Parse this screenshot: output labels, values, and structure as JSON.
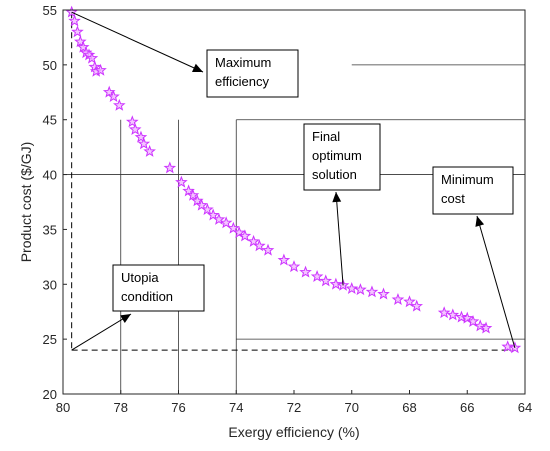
{
  "chart_data": {
    "type": "scatter",
    "xlabel": "Exergy efficiency (%)",
    "ylabel": "Product cost ($/GJ)",
    "xlim": [
      64,
      80
    ],
    "ylim": [
      20,
      55
    ],
    "x_reversed": true,
    "xticks": [
      80,
      78,
      76,
      74,
      72,
      70,
      68,
      66,
      64
    ],
    "yticks": [
      20,
      25,
      30,
      35,
      40,
      45,
      50,
      55
    ],
    "marker": "star",
    "marker_color": "#cc33ff",
    "x": [
      79.7,
      79.6,
      79.5,
      79.4,
      79.3,
      79.2,
      79.1,
      79.0,
      78.9,
      78.85,
      78.7,
      78.4,
      78.25,
      78.05,
      77.6,
      77.5,
      77.3,
      77.2,
      77.0,
      76.3,
      75.9,
      75.65,
      75.5,
      75.35,
      75.2,
      75.0,
      74.8,
      74.6,
      74.35,
      74.1,
      73.9,
      73.7,
      73.4,
      73.2,
      72.9,
      72.35,
      72.0,
      71.6,
      71.2,
      70.9,
      70.55,
      70.3,
      70.0,
      69.7,
      69.3,
      68.9,
      68.4,
      68.0,
      67.75,
      66.8,
      66.5,
      66.2,
      66.0,
      65.8,
      65.55,
      65.35,
      64.6,
      64.35
    ],
    "y": [
      54.8,
      54.0,
      53.0,
      52.1,
      51.6,
      51.1,
      50.9,
      50.6,
      49.8,
      49.4,
      49.5,
      47.5,
      47.1,
      46.3,
      44.8,
      44.1,
      43.4,
      42.8,
      42.1,
      40.6,
      39.3,
      38.5,
      38.1,
      37.6,
      37.2,
      36.8,
      36.3,
      35.9,
      35.6,
      35.1,
      34.7,
      34.4,
      33.9,
      33.5,
      33.1,
      32.2,
      31.6,
      31.1,
      30.7,
      30.3,
      30.0,
      29.9,
      29.6,
      29.5,
      29.3,
      29.1,
      28.6,
      28.4,
      28.0,
      27.4,
      27.2,
      27.0,
      26.9,
      26.6,
      26.2,
      26.0,
      24.3,
      24.2
    ],
    "utopia_point": {
      "x": 79.7,
      "y": 24.0
    },
    "annotations": [
      {
        "text": "Maximum\nefficiency"
      },
      {
        "text": "Final\noptimum\nsolution"
      },
      {
        "text": "Minimum\ncost"
      },
      {
        "text": "Utopia\ncondition"
      }
    ]
  }
}
